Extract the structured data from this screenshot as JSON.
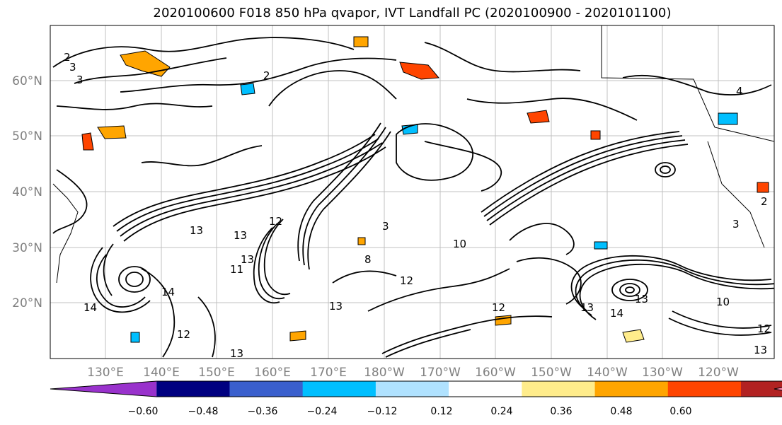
{
  "title": "2020100600 F018 850 hPa qvapor, IVT Landfall PC (2020100900 - 2020101100)",
  "lat_labels": [
    "60°N",
    "50°N",
    "40°N",
    "30°N",
    "20°N"
  ],
  "lon_labels": [
    "130°E",
    "140°E",
    "150°E",
    "160°E",
    "170°E",
    "180°W",
    "170°W",
    "160°W",
    "150°W",
    "140°W",
    "130°W",
    "120°W"
  ],
  "colorbar": {
    "ticks": [
      "−0.60",
      "−0.48",
      "−0.36",
      "−0.24",
      "−0.12",
      "0.12",
      "0.24",
      "0.36",
      "0.48",
      "0.60"
    ],
    "colors": [
      "#9932cc",
      "#000080",
      "#3a5fcd",
      "#00bfff",
      "#b0e2ff",
      "#ffffff",
      "#ffec8b",
      "#ffa500",
      "#ff4500",
      "#b22222",
      "#ff82ab"
    ]
  },
  "contour_labels": [
    "2",
    "3",
    "3",
    "2",
    "4",
    "13",
    "13",
    "12",
    "13",
    "11",
    "14",
    "12",
    "13",
    "14",
    "10",
    "3",
    "12",
    "13",
    "12",
    "13",
    "14",
    "13",
    "10",
    "12",
    "8",
    "13",
    "2",
    "3"
  ],
  "colors": {
    "contour": "#000000",
    "grid": "#c0c0c0",
    "tick_label": "#808080"
  }
}
